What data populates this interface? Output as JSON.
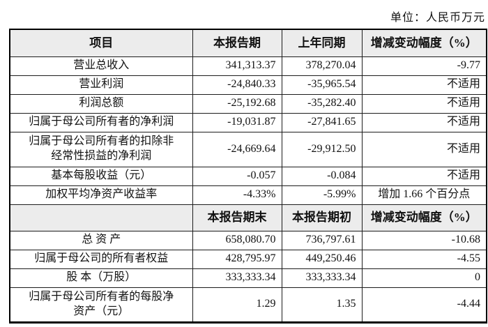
{
  "unit_label": "单位：人民币万元",
  "colors": {
    "header_bg": "#ececec",
    "border": "#000000",
    "text": "#111111"
  },
  "table": {
    "header1": [
      "项目",
      "本报告期",
      "上年同期",
      "增减变动幅度（%）"
    ],
    "rows1": [
      {
        "label": "营业总收入",
        "current": "341,313.37",
        "prior": "378,270.04",
        "change": "-9.77"
      },
      {
        "label": "营业利润",
        "current": "-24,840.33",
        "prior": "-35,965.54",
        "change": "不适用"
      },
      {
        "label": "利润总额",
        "current": "-25,192.68",
        "prior": "-35,282.40",
        "change": "不适用"
      },
      {
        "label": "归属于母公司所有者的净利润",
        "current": "-19,031.87",
        "prior": "-27,841.65",
        "change": "不适用"
      },
      {
        "label": "归属于母公司所有者的扣除非\n经常性损益的净利润",
        "current": "-24,669.64",
        "prior": "-29,912.50",
        "change": "不适用"
      },
      {
        "label": "基本每股收益（元）",
        "current": "-0.057",
        "prior": "-0.084",
        "change": "不适用"
      },
      {
        "label": "加权平均净资产收益率",
        "current": "-4.33%",
        "prior": "-5.99%",
        "change": "增加 1.66 个百分点"
      }
    ],
    "header2": [
      "",
      "本报告期末",
      "本报告期初",
      "增减变动幅度（%）"
    ],
    "rows2": [
      {
        "label": "总  资  产",
        "current": "658,080.70",
        "prior": "736,797.61",
        "change": "-10.68"
      },
      {
        "label": "归属于母公司的所有者权益",
        "current": "428,795.97",
        "prior": "449,250.46",
        "change": "-4.55"
      },
      {
        "label": "股  本（万股）",
        "current": "333,333.34",
        "prior": "333,333.34",
        "change": "0"
      },
      {
        "label": "归属于母公司所有者的每股净\n资产（元）",
        "current": "1.29",
        "prior": "1.35",
        "change": "-4.44"
      }
    ]
  }
}
